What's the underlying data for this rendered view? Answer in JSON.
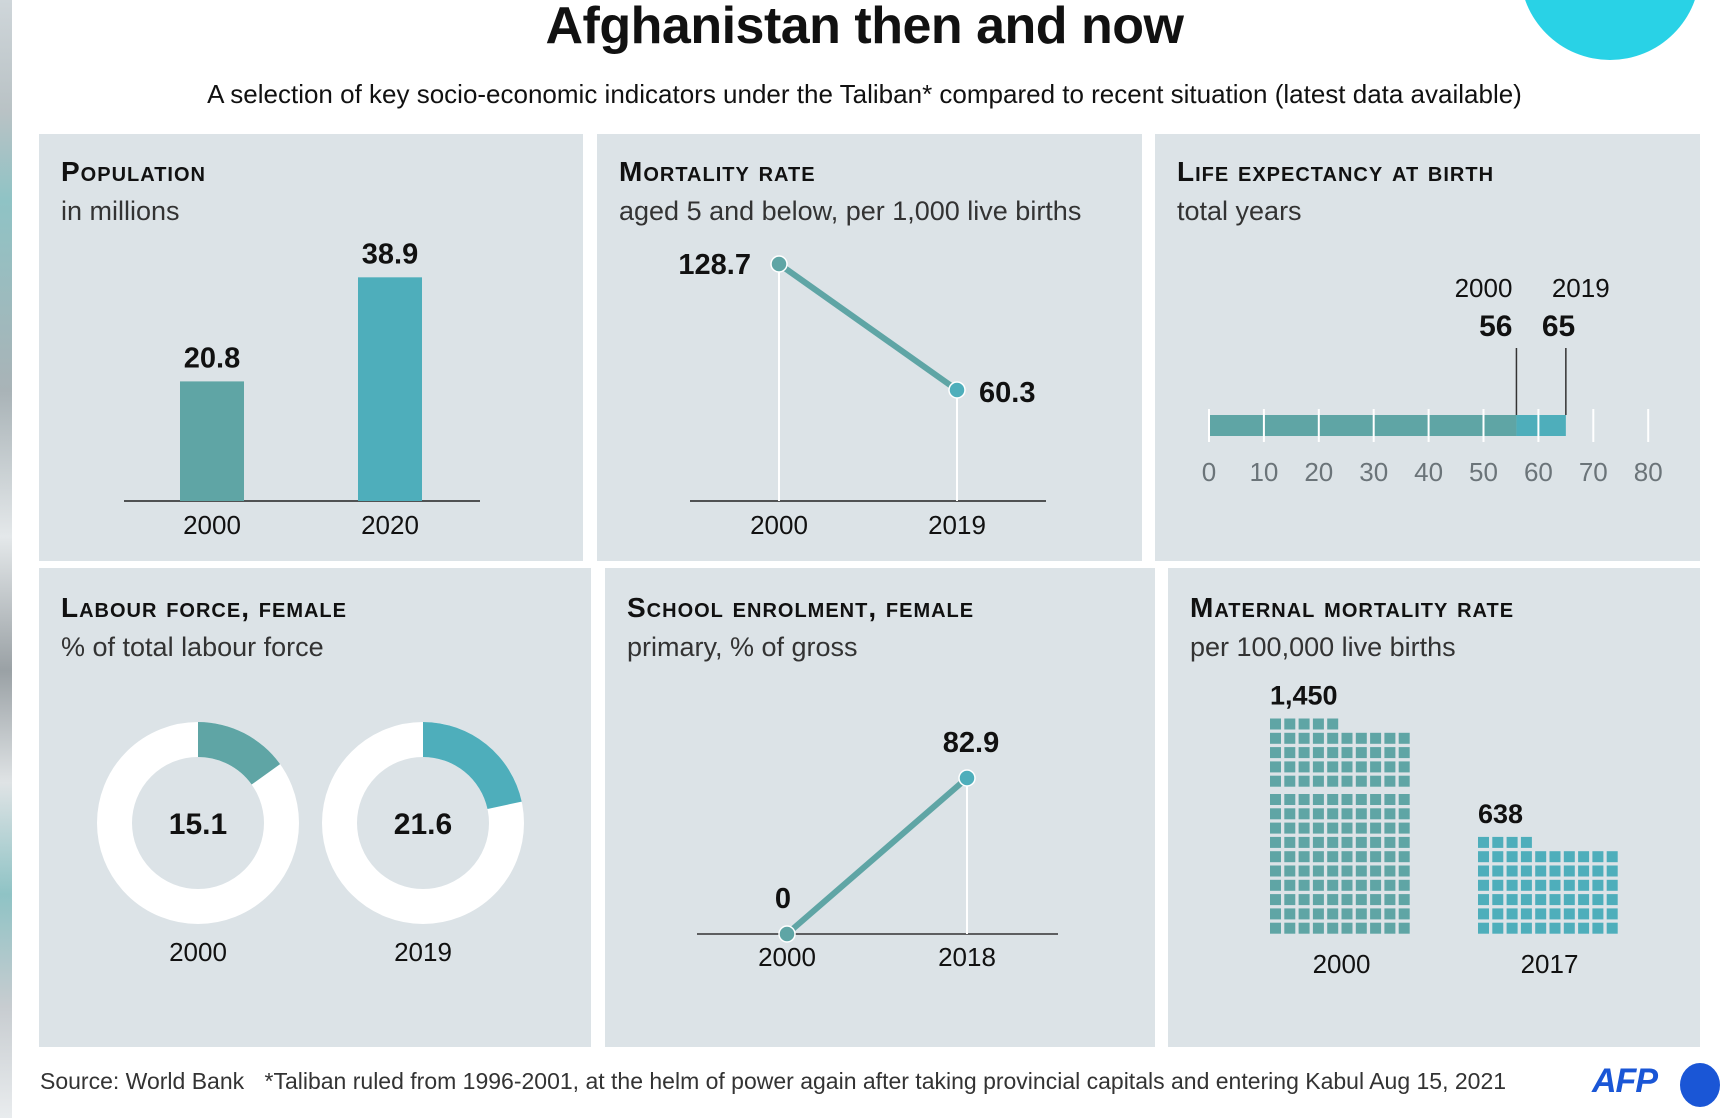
{
  "header": {
    "title": "Afghanistan then and now",
    "subtitle": "A selection of key socio-economic indicators under the Taliban* compared to recent situation (latest data available)"
  },
  "colors": {
    "panel_bg": "#dce3e7",
    "teal_then": "#5fa5a5",
    "teal_now": "#4eaebb",
    "accent_circle": "#29d2e6",
    "afp_blue": "#1a56d6"
  },
  "footer": {
    "source": "Source: World Bank",
    "note": "*Taliban ruled from 1996-2001, at the helm of power again after taking provincial capitals and entering Kabul Aug 15, 2021",
    "logo": "AFP"
  },
  "chart_data": [
    {
      "type": "bar",
      "title": "Population",
      "subtitle": "in millions",
      "categories": [
        "2000",
        "2020"
      ],
      "values": [
        20.8,
        38.9
      ],
      "value_labels": [
        "20.8",
        "38.9"
      ],
      "ylim": [
        0,
        40
      ]
    },
    {
      "type": "line",
      "title": "Mortality rate",
      "subtitle": "aged 5 and below, per 1,000 live births",
      "categories": [
        "2000",
        "2019"
      ],
      "values": [
        128.7,
        60.3
      ],
      "value_labels": [
        "128.7",
        "60.3"
      ],
      "ylim": [
        0,
        135
      ]
    },
    {
      "type": "bar",
      "orientation": "horizontal",
      "title": "Life expectancy at birth",
      "subtitle": "total years",
      "categories": [
        "2000",
        "2019"
      ],
      "values": [
        56,
        65
      ],
      "value_labels": [
        "56",
        "65"
      ],
      "xlim": [
        0,
        80
      ],
      "ticks": [
        "0",
        "10",
        "20",
        "30",
        "40",
        "50",
        "60",
        "70",
        "80"
      ]
    },
    {
      "type": "pie",
      "title": "Labour force, female",
      "subtitle": "% of total labour force",
      "categories": [
        "2000",
        "2019"
      ],
      "values": [
        15.1,
        21.6
      ],
      "value_labels": [
        "15.1",
        "21.6"
      ],
      "max": 100
    },
    {
      "type": "line",
      "title": "School enrolment, female",
      "subtitle": "primary, % of gross",
      "categories": [
        "2000",
        "2018"
      ],
      "values": [
        0,
        82.9
      ],
      "value_labels": [
        "0",
        "82.9"
      ],
      "ylim": [
        0,
        100
      ]
    },
    {
      "type": "bar",
      "style": "unit-grid",
      "title": "Maternal mortality rate",
      "subtitle": "per 100,000 live births",
      "categories": [
        "2000",
        "2017"
      ],
      "values": [
        1450,
        638
      ],
      "value_labels": [
        "1,450",
        "638"
      ],
      "units_per_square": 10
    }
  ]
}
